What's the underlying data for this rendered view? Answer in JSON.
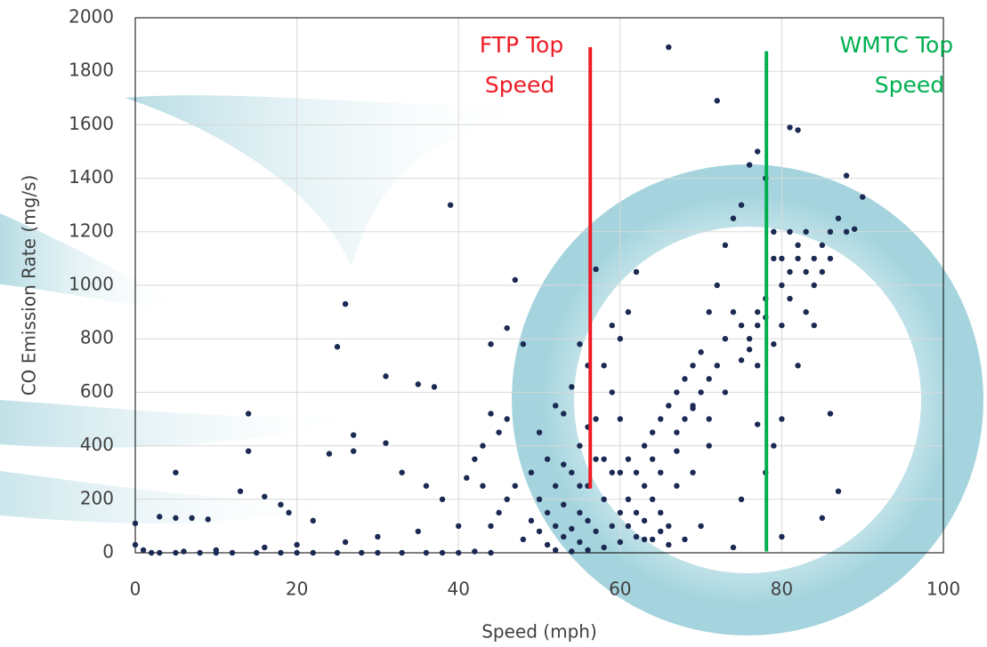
{
  "chart_data": {
    "type": "scatter",
    "x_label": "Speed (mph)",
    "y_label": "CO Emission Rate (mg/s)",
    "color": "#1b2a52",
    "grid": true,
    "xlim": [
      0,
      100
    ],
    "xticks": [
      0,
      20,
      40,
      60,
      80,
      100
    ],
    "ylim": [
      0,
      2000
    ],
    "yticks": [
      0,
      200,
      400,
      600,
      800,
      1000,
      1200,
      1400,
      1600,
      1800,
      2000
    ],
    "x": [
      0,
      0,
      1,
      2,
      3,
      5,
      8,
      10,
      12,
      15,
      18,
      20,
      22,
      25,
      28,
      30,
      33,
      36,
      38,
      40,
      42,
      44,
      3,
      5,
      5,
      7,
      9,
      13,
      14,
      14,
      16,
      18,
      19,
      22,
      24,
      25,
      26,
      27,
      27,
      31,
      31,
      35,
      37,
      39,
      33,
      36,
      38,
      41,
      42,
      43,
      44,
      45,
      46,
      47,
      46,
      48,
      44,
      40,
      35,
      30,
      26,
      20,
      16,
      10,
      6,
      48,
      49,
      50,
      50,
      51,
      51,
      52,
      52,
      53,
      53,
      54,
      54,
      55,
      55,
      55,
      56,
      56,
      57,
      57,
      58,
      58,
      59,
      59,
      60,
      60,
      50,
      52,
      53,
      54,
      55,
      56,
      57,
      58,
      59,
      60,
      61,
      61,
      62,
      62,
      63,
      63,
      64,
      64,
      65,
      65,
      66,
      66,
      67,
      67,
      68,
      68,
      69,
      69,
      70,
      70,
      71,
      71,
      72,
      72,
      73,
      73,
      74,
      74,
      75,
      75,
      76,
      76,
      77,
      77,
      78,
      78,
      79,
      79,
      80,
      80,
      81,
      81,
      82,
      82,
      83,
      83,
      84,
      84,
      85,
      86,
      87,
      88,
      89,
      90,
      88,
      81,
      82,
      72,
      66,
      86,
      87,
      85,
      80,
      78,
      75,
      70,
      68,
      66,
      64,
      62,
      60,
      58,
      56,
      54,
      52,
      74,
      73,
      77,
      79,
      76,
      75,
      77,
      78,
      80,
      81,
      83,
      84,
      85,
      86,
      82,
      80,
      79,
      77,
      71,
      69,
      67,
      65,
      63,
      61,
      60,
      59,
      57,
      56,
      55,
      53,
      51,
      49,
      47,
      46,
      45,
      44,
      43,
      61,
      62,
      63,
      64,
      65,
      67,
      69,
      71
    ],
    "values": [
      110,
      30,
      10,
      0,
      0,
      0,
      0,
      0,
      0,
      0,
      0,
      0,
      0,
      0,
      0,
      0,
      0,
      0,
      0,
      0,
      5,
      0,
      135,
      300,
      130,
      130,
      125,
      230,
      520,
      380,
      210,
      180,
      150,
      120,
      370,
      770,
      930,
      440,
      380,
      410,
      660,
      630,
      620,
      1300,
      300,
      250,
      200,
      280,
      350,
      400,
      520,
      450,
      500,
      1020,
      840,
      780,
      780,
      100,
      80,
      60,
      40,
      30,
      20,
      10,
      5,
      50,
      120,
      80,
      200,
      30,
      150,
      100,
      250,
      60,
      180,
      90,
      300,
      40,
      150,
      400,
      120,
      250,
      80,
      500,
      200,
      350,
      100,
      600,
      150,
      300,
      450,
      550,
      520,
      620,
      780,
      700,
      1060,
      700,
      850,
      800,
      900,
      200,
      1050,
      300,
      400,
      120,
      450,
      200,
      500,
      300,
      550,
      100,
      600,
      380,
      650,
      500,
      700,
      540,
      750,
      600,
      900,
      650,
      1000,
      700,
      1150,
      800,
      1250,
      900,
      1300,
      850,
      1450,
      800,
      1500,
      900,
      1400,
      950,
      1200,
      1100,
      1100,
      1000,
      1050,
      1200,
      1100,
      1150,
      1050,
      1200,
      1000,
      1100,
      1150,
      1200,
      1250,
      1200,
      1210,
      1330,
      1410,
      1590,
      1580,
      1690,
      1890,
      520,
      230,
      130,
      60,
      300,
      200,
      100,
      50,
      30,
      50,
      60,
      40,
      20,
      10,
      5,
      10,
      20,
      600,
      700,
      780,
      760,
      720,
      850,
      880,
      850,
      950,
      900,
      850,
      1050,
      1100,
      700,
      500,
      400,
      480,
      400,
      300,
      250,
      150,
      250,
      350,
      500,
      300,
      350,
      470,
      250,
      330,
      350,
      300,
      250,
      200,
      150,
      100,
      250,
      100,
      150,
      50,
      350,
      80,
      450,
      550,
      500
    ],
    "annotations": [
      {
        "text_lines": [
          "FTP Top",
          "Speed"
        ],
        "x": 56.3,
        "y_range": [
          240,
          1890
        ],
        "color": "#ee1c25"
      },
      {
        "text_lines": [
          "WMTC Top",
          "Speed"
        ],
        "x": 78.1,
        "y_range": [
          5,
          1875
        ],
        "color": "#00b050"
      }
    ]
  }
}
